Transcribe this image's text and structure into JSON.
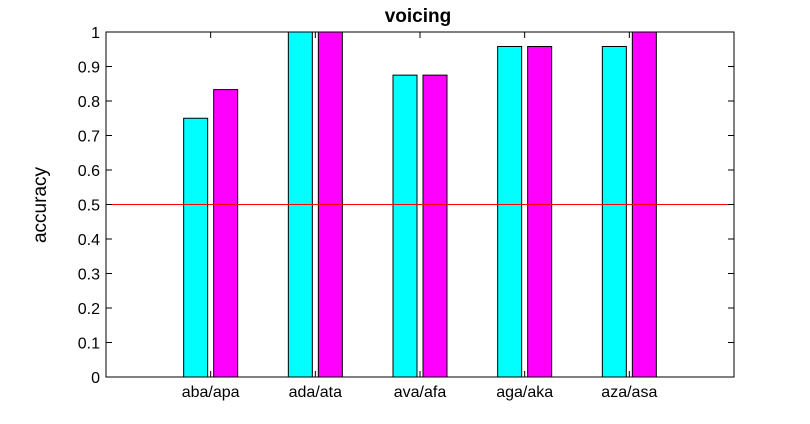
{
  "chart_data": {
    "type": "bar",
    "title": "voicing",
    "xlabel": "",
    "ylabel": "accuracy",
    "categories": [
      "aba/apa",
      "ada/ata",
      "ava/afa",
      "aga/aka",
      "aza/asa"
    ],
    "series": [
      {
        "color": "#00ffff",
        "values": [
          0.75,
          1.0,
          0.875,
          0.958,
          0.958
        ]
      },
      {
        "color": "#ff00ff",
        "values": [
          0.833,
          1.0,
          0.875,
          0.958,
          1.0
        ]
      }
    ],
    "ylim": [
      0,
      1
    ],
    "yticks": [
      "0",
      "0.1",
      "0.2",
      "0.3",
      "0.4",
      "0.5",
      "0.6",
      "0.7",
      "0.8",
      "0.9",
      "1"
    ],
    "reference_line": {
      "y": 0.5,
      "color": "#ff0000"
    },
    "grid": false,
    "legend": "none"
  }
}
